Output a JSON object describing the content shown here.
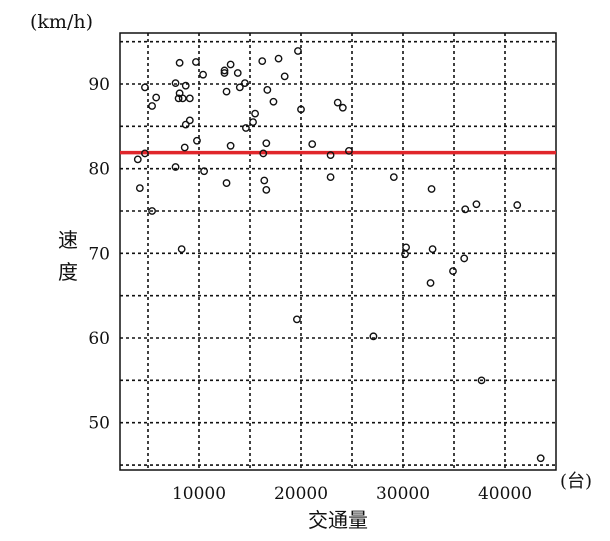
{
  "chart_data": {
    "type": "scatter",
    "title": "",
    "xlabel": "交通量",
    "xunit": "(台)",
    "ylabel": "速度",
    "yunit": "(km/h)",
    "xlim": [
      2300,
      45000
    ],
    "ylim": [
      45,
      96
    ],
    "xticks": [
      10000,
      20000,
      30000,
      40000
    ],
    "xtick_labels": [
      "10000",
      "20000",
      "30000",
      "40000"
    ],
    "yticks": [
      50,
      60,
      70,
      80,
      90
    ],
    "ytick_labels": [
      "50",
      "60",
      "70",
      "80",
      "90"
    ],
    "grid": true,
    "grid_x_step": 5000,
    "grid_y_step": 5,
    "reference_line": {
      "y": 81.9,
      "color": "#e0262b"
    },
    "marker_color": "#111111",
    "points": [
      [
        8100,
        92.5
      ],
      [
        9700,
        92.6
      ],
      [
        10400,
        91.1
      ],
      [
        12500,
        91.6
      ],
      [
        12500,
        91.3
      ],
      [
        13100,
        92.3
      ],
      [
        13800,
        91.3
      ],
      [
        16200,
        92.7
      ],
      [
        17800,
        93.0
      ],
      [
        19700,
        93.9
      ],
      [
        18400,
        90.9
      ],
      [
        4700,
        89.6
      ],
      [
        7700,
        90.1
      ],
      [
        8700,
        89.8
      ],
      [
        8100,
        88.9
      ],
      [
        8000,
        88.3
      ],
      [
        8400,
        88.3
      ],
      [
        9100,
        88.3
      ],
      [
        5800,
        88.4
      ],
      [
        5400,
        87.4
      ],
      [
        12700,
        89.1
      ],
      [
        14000,
        89.6
      ],
      [
        14500,
        90.1
      ],
      [
        16700,
        89.3
      ],
      [
        17300,
        87.9
      ],
      [
        20000,
        87.0
      ],
      [
        23600,
        87.8
      ],
      [
        24100,
        87.2
      ],
      [
        15500,
        86.5
      ],
      [
        15300,
        85.5
      ],
      [
        14600,
        84.8
      ],
      [
        9100,
        85.7
      ],
      [
        8700,
        85.2
      ],
      [
        9800,
        83.3
      ],
      [
        8600,
        82.5
      ],
      [
        13100,
        82.7
      ],
      [
        16600,
        83.0
      ],
      [
        21100,
        82.9
      ],
      [
        4700,
        81.8
      ],
      [
        4000,
        81.1
      ],
      [
        16300,
        81.8
      ],
      [
        22900,
        81.6
      ],
      [
        24700,
        82.1
      ],
      [
        7700,
        80.2
      ],
      [
        10500,
        79.7
      ],
      [
        12700,
        78.3
      ],
      [
        16400,
        78.6
      ],
      [
        16600,
        77.5
      ],
      [
        22900,
        79.0
      ],
      [
        4200,
        77.7
      ],
      [
        5400,
        75.0
      ],
      [
        8300,
        70.5
      ],
      [
        29100,
        79.0
      ],
      [
        32800,
        77.6
      ],
      [
        36100,
        75.2
      ],
      [
        37200,
        75.8
      ],
      [
        41200,
        75.7
      ],
      [
        30300,
        70.7
      ],
      [
        30200,
        69.9
      ],
      [
        32900,
        70.5
      ],
      [
        36000,
        69.4
      ],
      [
        34900,
        67.9
      ],
      [
        32700,
        66.5
      ],
      [
        19600,
        62.2
      ],
      [
        27100,
        60.2
      ],
      [
        37700,
        55.0
      ],
      [
        43500,
        45.8
      ]
    ]
  }
}
